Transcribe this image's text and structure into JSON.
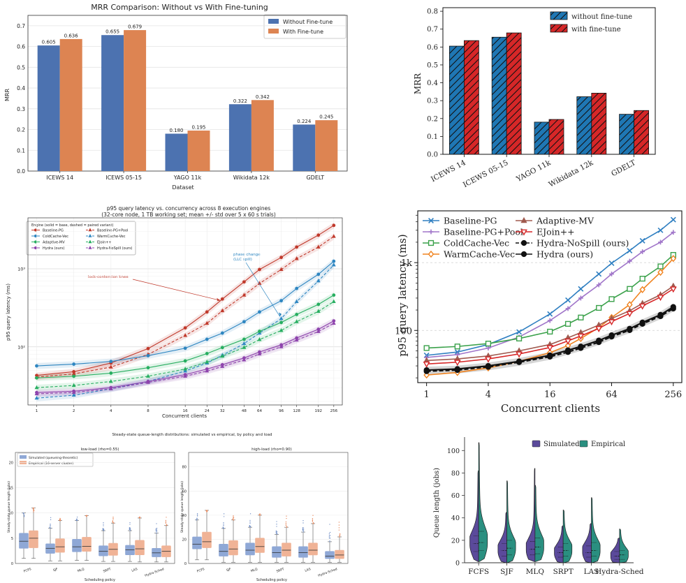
{
  "chart_data": [
    {
      "id": "c1",
      "type": "bar",
      "title": "MRR Comparison: Without vs With Fine-tuning",
      "xlabel": "Dataset",
      "ylabel": "MRR",
      "categories": [
        "ICEWS 14",
        "ICEWS 05-15",
        "YAGO 11k",
        "Wikidata 12k",
        "GDELT"
      ],
      "series": [
        {
          "name": "Without Fine-tune",
          "values": [
            0.605,
            0.655,
            0.18,
            0.322,
            0.224
          ],
          "color": "#4c72b0"
        },
        {
          "name": "With Fine-tune",
          "values": [
            0.636,
            0.679,
            0.195,
            0.342,
            0.245
          ],
          "color": "#dd8452"
        }
      ],
      "value_labels": [
        [
          "0.605",
          "0.655",
          "0.180",
          "0.322",
          "0.224"
        ],
        [
          "0.636",
          "0.679",
          "0.195",
          "0.342",
          "0.245"
        ]
      ],
      "ylim": [
        0,
        0.75
      ],
      "yticks": [
        0.0,
        0.1,
        0.2,
        0.3,
        0.4,
        0.5,
        0.6,
        0.7
      ],
      "ytick_labels": [
        "0.0",
        "0.1",
        "0.2",
        "0.3",
        "0.4",
        "0.5",
        "0.6",
        "0.7"
      ],
      "grid": true,
      "legend": "top-right"
    },
    {
      "id": "c2",
      "type": "bar",
      "ylabel": "MRR",
      "categories": [
        "ICEWS 14",
        "ICEWS 05-15",
        "YAGO 11k",
        "Wikidata 12k",
        "GDELT"
      ],
      "series": [
        {
          "name": "without fine-tune",
          "values": [
            0.605,
            0.655,
            0.18,
            0.322,
            0.224
          ],
          "color": "#1f77b4"
        },
        {
          "name": "with fine-tune",
          "values": [
            0.636,
            0.679,
            0.195,
            0.342,
            0.245
          ],
          "color": "#d62728"
        }
      ],
      "ylim": [
        0,
        0.82
      ],
      "yticks": [
        0.0,
        0.1,
        0.2,
        0.3,
        0.4,
        0.5,
        0.6,
        0.7,
        0.8
      ],
      "ytick_labels": [
        "0.0",
        "0.1",
        "0.2",
        "0.3",
        "0.4",
        "0.5",
        "0.6",
        "0.7",
        "0.8"
      ],
      "hatch": "diagonal",
      "grid": false,
      "legend": "top-right"
    },
    {
      "id": "c3",
      "type": "line",
      "title": "p95 query latency vs. concurrency across 8 execution engines",
      "subtitle": "(32-core node, 1 TB working set; mean +/- std over 5 x 60 s trials)",
      "xlabel": "Concurrent clients",
      "ylabel": "p95 query latency (ms)",
      "xscale": "log2",
      "yscale": "log10",
      "x": [
        1,
        2,
        4,
        8,
        16,
        24,
        32,
        48,
        64,
        96,
        128,
        192,
        256
      ],
      "xtick_labels": [
        "1",
        "2",
        "4",
        "8",
        "16",
        "24",
        "32",
        "48",
        "64",
        "96",
        "128",
        "192",
        "256"
      ],
      "ylim": [
        18,
        4500
      ],
      "yticks": [
        100,
        1000
      ],
      "ytick_labels": [
        "10²",
        "10³"
      ],
      "legend_title": "Engine (solid = base, dashed = paired variant)",
      "legend": "top-left",
      "series": [
        {
          "name": "Baseline-PG",
          "color": "#c0392b",
          "dash": false,
          "marker": "o",
          "values": [
            43,
            48,
            62,
            95,
            175,
            280,
            410,
            680,
            980,
            1400,
            1900,
            2700,
            3600
          ]
        },
        {
          "name": "Baseline-PG+Pool",
          "color": "#c0392b",
          "dash": true,
          "marker": "^",
          "values": [
            41,
            45,
            55,
            80,
            140,
            200,
            290,
            460,
            650,
            980,
            1350,
            1900,
            2600
          ]
        },
        {
          "name": "ColdCache-Vec",
          "color": "#2e86c1",
          "dash": false,
          "marker": "o",
          "values": [
            57,
            60,
            65,
            77,
            96,
            125,
            150,
            210,
            280,
            390,
            560,
            850,
            1250
          ]
        },
        {
          "name": "WarmCache-Vec",
          "color": "#2e86c1",
          "dash": true,
          "marker": "^",
          "values": [
            22,
            24,
            29,
            36,
            49,
            62,
            78,
            110,
            150,
            230,
            380,
            700,
            1120
          ]
        },
        {
          "name": "Adaptive-MV",
          "color": "#27ae60",
          "dash": false,
          "marker": "o",
          "values": [
            40,
            42,
            46,
            54,
            66,
            82,
            98,
            125,
            158,
            205,
            260,
            350,
            460
          ]
        },
        {
          "name": "EJoin++",
          "color": "#27ae60",
          "dash": true,
          "marker": "^",
          "values": [
            30,
            32,
            36,
            42,
            52,
            64,
            76,
            98,
            124,
            162,
            210,
            285,
            380
          ]
        },
        {
          "name": "Hydra (ours)",
          "color": "#8e44ad",
          "dash": false,
          "marker": "o",
          "values": [
            26,
            27,
            30,
            36,
            44,
            52,
            59,
            72,
            86,
            106,
            130,
            168,
            215
          ]
        },
        {
          "name": "Hydra-NoSpill (ours)",
          "color": "#8e44ad",
          "dash": true,
          "marker": "^",
          "values": [
            25,
            26,
            29,
            35,
            42,
            49,
            56,
            68,
            81,
            100,
            122,
            157,
            200
          ]
        }
      ],
      "annotations": [
        {
          "text": "lock-contention knee",
          "color": "#c0392b"
        },
        {
          "text": "phase change",
          "text2": "(LLC spill)",
          "color": "#2e86c1"
        }
      ],
      "grid": true
    },
    {
      "id": "c4",
      "type": "line",
      "xlabel": "Concurrent clients",
      "ylabel": "p95 query latency (ms)",
      "xscale": "log2",
      "yscale": "log10",
      "x": [
        1,
        2,
        4,
        8,
        16,
        24,
        32,
        48,
        64,
        96,
        128,
        192,
        256
      ],
      "xticks": [
        1,
        4,
        16,
        64,
        256
      ],
      "xtick_labels": [
        "1",
        "4",
        "16",
        "64",
        "256"
      ],
      "ylim": [
        17,
        5800
      ],
      "yticks": [
        100,
        1000
      ],
      "ytick_labels": [
        "100",
        "1k"
      ],
      "legend": "top-left",
      "series": [
        {
          "name": "Baseline-PG",
          "color": "#2f7fc1",
          "marker": "x",
          "values": [
            43,
            48,
            62,
            95,
            175,
            280,
            410,
            680,
            980,
            1500,
            2100,
            3000,
            4300
          ]
        },
        {
          "name": "Baseline-PG+Pool",
          "color": "#a075c9",
          "marker": "+",
          "values": [
            40,
            44,
            55,
            80,
            140,
            210,
            300,
            470,
            680,
            1050,
            1450,
            2000,
            2800
          ]
        },
        {
          "name": "ColdCache-Vec",
          "color": "#3aa14a",
          "marker": "s",
          "values": [
            55,
            58,
            64,
            76,
            96,
            125,
            155,
            215,
            290,
            410,
            580,
            880,
            1300
          ]
        },
        {
          "name": "WarmCache-Vec",
          "color": "#f0831f",
          "marker": "D",
          "values": [
            22,
            24,
            28,
            35,
            47,
            60,
            76,
            110,
            155,
            240,
            400,
            720,
            1150
          ]
        },
        {
          "name": "Adaptive-MV",
          "color": "#a05a4f",
          "marker": "^",
          "values": [
            36,
            38,
            42,
            50,
            62,
            78,
            93,
            120,
            150,
            195,
            250,
            335,
            450
          ]
        },
        {
          "name": "EJoin++",
          "color": "#d62728",
          "marker": "v",
          "values": [
            32,
            34,
            38,
            45,
            56,
            70,
            83,
            107,
            135,
            178,
            230,
            310,
            410
          ]
        },
        {
          "name": "Hydra-NoSpill (ours)",
          "color": "#111111",
          "marker": "o",
          "dash": true,
          "values": [
            25,
            26,
            29,
            34,
            41,
            48,
            55,
            67,
            81,
            101,
            125,
            162,
            210
          ]
        },
        {
          "name": "Hydra (ours)",
          "color": "#111111",
          "marker": "o",
          "dash": false,
          "values": [
            26,
            27,
            30,
            35,
            43,
            51,
            58,
            71,
            85,
            106,
            131,
            170,
            222
          ]
        }
      ],
      "grid": true
    },
    {
      "id": "c5",
      "type": "box",
      "suptitle": "Steady-state queue-length distributions: simulated vs empirical, by policy and load",
      "panels": [
        {
          "title": "low-load (rho=0.55)",
          "ylabel": "Steady-state queue length (jobs)",
          "ylim": [
            0,
            22
          ],
          "yticks": [
            0,
            5,
            10,
            15,
            20
          ],
          "ytick_labels": [
            "0",
            "5",
            "10",
            "15",
            "20"
          ],
          "boxes": [
            {
              "sim": [
                1.0,
                3.0,
                4.4,
                6.0,
                10.0
              ],
              "emp": [
                1.0,
                3.1,
                5.0,
                6.5,
                11.0
              ]
            },
            {
              "sim": [
                0.5,
                2.0,
                3.0,
                3.9,
                7.0
              ],
              "emp": [
                0.5,
                2.2,
                3.3,
                4.9,
                8.5
              ]
            },
            {
              "sim": [
                0.6,
                2.3,
                3.3,
                4.8,
                8.5
              ],
              "emp": [
                0.6,
                2.4,
                3.4,
                5.2,
                9.5
              ]
            },
            {
              "sim": [
                0.4,
                1.5,
                2.4,
                3.5,
                6.5
              ],
              "emp": [
                0.4,
                1.6,
                2.8,
                4.0,
                8.0
              ]
            },
            {
              "sim": [
                0.4,
                1.7,
                2.7,
                3.6,
                6.5
              ],
              "emp": [
                0.3,
                1.7,
                2.9,
                4.6,
                9.0
              ]
            },
            {
              "sim": [
                0.3,
                1.3,
                2.1,
                3.0,
                6.0
              ],
              "emp": [
                0.3,
                1.3,
                2.4,
                3.5,
                7.5
              ]
            }
          ]
        },
        {
          "title": "high-load (rho=0.90)",
          "ylabel": "Steady-state queue length (jobs)",
          "ylim": [
            0,
            92
          ],
          "yticks": [
            0,
            20,
            40,
            60,
            80
          ],
          "ytick_labels": [
            "0",
            "20",
            "40",
            "60",
            "80"
          ],
          "boxes": [
            {
              "sim": [
                3,
                12,
                16,
                22,
                36
              ],
              "emp": [
                3,
                13,
                18,
                26,
                44
              ]
            },
            {
              "sim": [
                1,
                6,
                10,
                16,
                29
              ],
              "emp": [
                1,
                7,
                12,
                19,
                36
              ]
            },
            {
              "sim": [
                1,
                7,
                11,
                17,
                30
              ],
              "emp": [
                1,
                9,
                14,
                21,
                40
              ]
            },
            {
              "sim": [
                1,
                5,
                9,
                14,
                24
              ],
              "emp": [
                1,
                6,
                11,
                17,
                30
              ]
            },
            {
              "sim": [
                1,
                5,
                9,
                14,
                26
              ],
              "emp": [
                1,
                7,
                11,
                17,
                33
              ]
            },
            {
              "sim": [
                1,
                4,
                6,
                10,
                18
              ],
              "emp": [
                1,
                4,
                7,
                11,
                22
              ]
            }
          ]
        }
      ],
      "categories": [
        "FCFS",
        "SJF",
        "MLQ",
        "SRPT",
        "LAS",
        "Hydra-Sched"
      ],
      "xlabel": "Scheduling policy",
      "series": [
        {
          "name": "Simulated (queueing-theoretic)",
          "color": "#8fa8d6"
        },
        {
          "name": "Empirical (16-server cluster)",
          "color": "#f0b396"
        }
      ],
      "legend": "top-left"
    },
    {
      "id": "c6",
      "type": "violin",
      "ylabel": "Queue length (jobs)",
      "categories": [
        "FCFS",
        "SJF",
        "MLQ",
        "SRPT",
        "LAS",
        "Hydra-Sched"
      ],
      "ylim": [
        0,
        112
      ],
      "yticks": [
        0,
        20,
        40,
        60,
        80,
        100
      ],
      "ytick_labels": [
        "0",
        "20",
        "40",
        "60",
        "80",
        "100"
      ],
      "series": [
        {
          "name": "Simulated",
          "color": "#5b4a9b"
        },
        {
          "name": "Empirical",
          "color": "#2a8f80"
        }
      ],
      "violins": [
        {
          "sim": {
            "min": 1,
            "max": 82,
            "q1": 10,
            "med": 17,
            "q3": 24,
            "mode": 16
          },
          "emp": {
            "min": 1,
            "max": 107,
            "q1": 11,
            "med": 18,
            "q3": 28,
            "mode": 17
          }
        },
        {
          "sim": {
            "min": 0,
            "max": 45,
            "q1": 6,
            "med": 11,
            "q3": 17,
            "mode": 10
          },
          "emp": {
            "min": 0,
            "max": 73,
            "q1": 7,
            "med": 13,
            "q3": 20,
            "mode": 12
          }
        },
        {
          "sim": {
            "min": 1,
            "max": 84,
            "q1": 7,
            "med": 12,
            "q3": 19,
            "mode": 11
          },
          "emp": {
            "min": 1,
            "max": 69,
            "q1": 8,
            "med": 14,
            "q3": 22,
            "mode": 13
          }
        },
        {
          "sim": {
            "min": 0,
            "max": 33,
            "q1": 5,
            "med": 9,
            "q3": 14,
            "mode": 8
          },
          "emp": {
            "min": 0,
            "max": 47,
            "q1": 6,
            "med": 11,
            "q3": 17,
            "mode": 10
          }
        },
        {
          "sim": {
            "min": 0,
            "max": 35,
            "q1": 5,
            "med": 9,
            "q3": 15,
            "mode": 9
          },
          "emp": {
            "min": 0,
            "max": 58,
            "q1": 6,
            "med": 11,
            "q3": 18,
            "mode": 10
          }
        },
        {
          "sim": {
            "min": 0,
            "max": 22,
            "q1": 3,
            "med": 6,
            "q3": 10,
            "mode": 5
          },
          "emp": {
            "min": 0,
            "max": 30,
            "q1": 3,
            "med": 7,
            "q3": 11,
            "mode": 6
          }
        }
      ],
      "legend": "top-right"
    }
  ]
}
